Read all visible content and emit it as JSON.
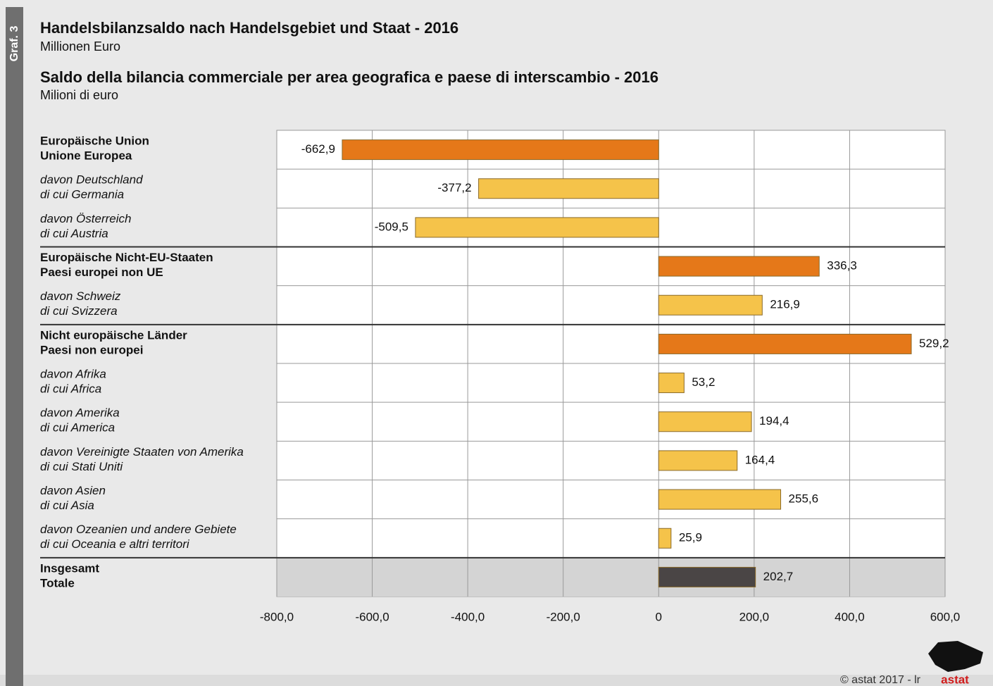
{
  "chart_data": {
    "type": "hbar",
    "figure_label": "Graf. 3",
    "title": "Handelsbilanzsaldo nach Handelsgebiet und Staat - 2016",
    "subtitle": "Millionen Euro",
    "title_it": "Saldo della bilancia commerciale per area geografica e paese di interscambio - 2016",
    "subtitle_it": "Milioni di euro",
    "categories": [
      [
        "Europäische Union",
        "Unione Europea"
      ],
      [
        "davon Deutschland",
        "di cui Germania"
      ],
      [
        "davon Österreich",
        "di cui Austria"
      ],
      [
        "Europäische Nicht-EU-Staaten",
        "Paesi europei non UE"
      ],
      [
        "davon Schweiz",
        "di cui Svizzera"
      ],
      [
        "Nicht europäische Länder",
        "Paesi non europei"
      ],
      [
        "davon Afrika",
        "di cui Africa"
      ],
      [
        "davon Amerika",
        "di cui America"
      ],
      [
        "davon Vereinigte Staaten von Amerika",
        "di cui Stati Uniti"
      ],
      [
        "davon Asien",
        "di cui Asia"
      ],
      [
        "davon Ozeanien und andere Gebiete",
        "di cui Oceania e altri territori"
      ],
      [
        "Insgesamt",
        "Totale"
      ]
    ],
    "label_styles": [
      "bold",
      "italic",
      "italic",
      "bold",
      "italic",
      "bold",
      "italic",
      "italic",
      "italic",
      "italic",
      "italic",
      "bold"
    ],
    "values": [
      -662.9,
      -377.2,
      -509.5,
      336.3,
      216.9,
      529.2,
      53.2,
      194.4,
      164.4,
      255.6,
      25.9,
      202.7
    ],
    "value_labels": [
      "-662,9",
      "-377,2",
      "-509,5",
      "336,3",
      "216,9",
      "529,2",
      "53,2",
      "194,4",
      "164,4",
      "255,6",
      "25,9",
      "202,7"
    ],
    "colors": [
      "#e57819",
      "#f5c34a",
      "#f5c34a",
      "#e57819",
      "#f5c34a",
      "#e57819",
      "#f5c34a",
      "#f5c34a",
      "#f5c34a",
      "#f5c34a",
      "#f5c34a",
      "#4a4545"
    ],
    "xlim": [
      -800,
      600
    ],
    "xticks": [
      {
        "value": -800,
        "label": "-800,0"
      },
      {
        "value": -600,
        "label": "-600,0"
      },
      {
        "value": -400,
        "label": "-400,0"
      },
      {
        "value": -200,
        "label": "-200,0"
      },
      0,
      {
        "value": 200,
        "label": "200,0"
      },
      {
        "value": 400,
        "label": "400,0"
      },
      {
        "value": 600,
        "label": "600,0"
      }
    ],
    "grid": true,
    "footer": "©  astat 2017 - lr",
    "logo": "astat"
  }
}
